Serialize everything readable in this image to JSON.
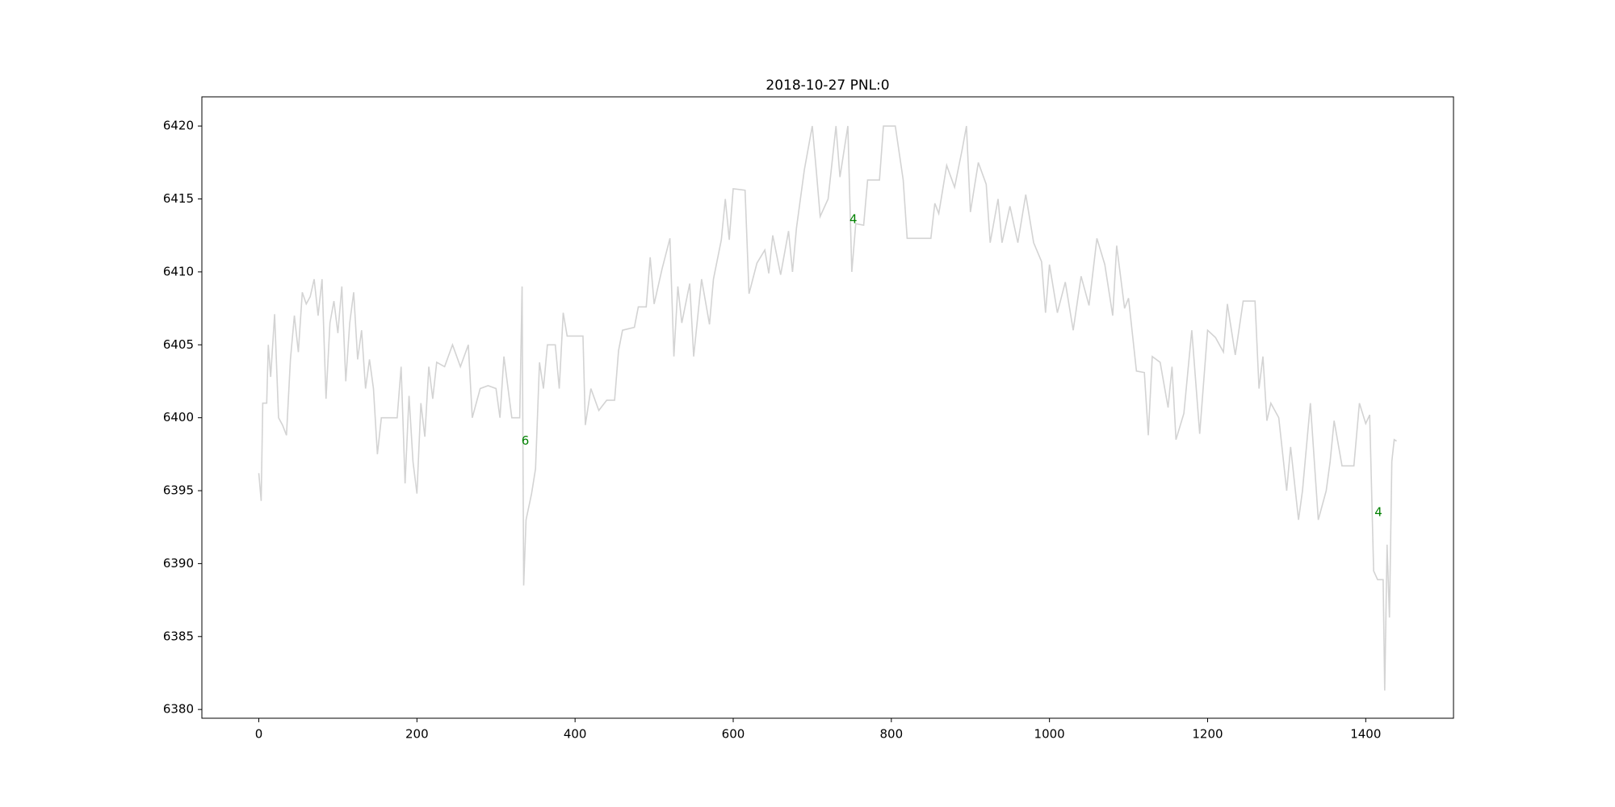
{
  "chart_data": {
    "type": "line",
    "title": "2018-10-27 PNL:0",
    "x": [
      0,
      3,
      5,
      10,
      12,
      15,
      20,
      25,
      30,
      35,
      40,
      45,
      50,
      55,
      60,
      65,
      70,
      75,
      80,
      85,
      90,
      95,
      100,
      105,
      110,
      115,
      120,
      125,
      130,
      135,
      140,
      145,
      150,
      155,
      165,
      175,
      180,
      185,
      190,
      195,
      200,
      205,
      210,
      215,
      220,
      225,
      235,
      245,
      255,
      265,
      270,
      280,
      290,
      300,
      305,
      310,
      320,
      330,
      333,
      335,
      338,
      345,
      350,
      355,
      360,
      365,
      375,
      380,
      385,
      390,
      400,
      410,
      413,
      420,
      430,
      440,
      450,
      455,
      460,
      475,
      480,
      490,
      495,
      500,
      510,
      520,
      525,
      530,
      535,
      545,
      550,
      560,
      570,
      575,
      585,
      590,
      595,
      600,
      615,
      620,
      630,
      640,
      645,
      650,
      660,
      670,
      675,
      680,
      690,
      700,
      705,
      710,
      720,
      730,
      735,
      745,
      750,
      755,
      765,
      770,
      785,
      790,
      805,
      815,
      820,
      850,
      855,
      860,
      870,
      880,
      890,
      895,
      900,
      910,
      920,
      925,
      935,
      940,
      950,
      960,
      970,
      980,
      990,
      995,
      1000,
      1010,
      1020,
      1030,
      1040,
      1050,
      1060,
      1070,
      1080,
      1085,
      1095,
      1100,
      1110,
      1120,
      1125,
      1130,
      1140,
      1150,
      1155,
      1160,
      1170,
      1180,
      1190,
      1200,
      1210,
      1220,
      1225,
      1235,
      1245,
      1260,
      1265,
      1270,
      1275,
      1280,
      1290,
      1300,
      1305,
      1315,
      1320,
      1330,
      1340,
      1350,
      1355,
      1360,
      1370,
      1385,
      1392,
      1400,
      1405,
      1410,
      1415,
      1422,
      1424,
      1427,
      1430,
      1433,
      1436,
      1439
    ],
    "values": [
      6396.2,
      6394.3,
      6401,
      6401,
      6405,
      6402.8,
      6407.1,
      6400,
      6399.5,
      6398.8,
      6404,
      6407,
      6404.5,
      6408.6,
      6407.8,
      6408.3,
      6409.5,
      6407,
      6409.5,
      6401.3,
      6406.5,
      6408,
      6405.8,
      6409,
      6402.5,
      6406.5,
      6408.6,
      6404,
      6406,
      6402,
      6404,
      6402,
      6397.5,
      6400,
      6400,
      6400,
      6403.5,
      6395.5,
      6401.5,
      6397,
      6394.8,
      6401,
      6398.7,
      6403.5,
      6401.3,
      6403.8,
      6403.5,
      6405,
      6403.5,
      6405,
      6400,
      6402,
      6402.2,
      6402,
      6400,
      6404.2,
      6400,
      6400,
      6409,
      6388.5,
      6393,
      6394.8,
      6396.5,
      6403.8,
      6402,
      6405,
      6405,
      6402,
      6407.2,
      6405.6,
      6405.6,
      6405.6,
      6399.5,
      6402,
      6400.5,
      6401.2,
      6401.2,
      6404.6,
      6406,
      6406.2,
      6407.6,
      6407.6,
      6411,
      6407.8,
      6410.2,
      6412.3,
      6404.2,
      6409,
      6406.5,
      6409.2,
      6404.2,
      6409.5,
      6406.4,
      6409.5,
      6412.2,
      6415,
      6412.2,
      6415.7,
      6415.6,
      6408.5,
      6410.6,
      6411.5,
      6409.9,
      6412.5,
      6409.8,
      6412.8,
      6410,
      6413,
      6417,
      6420,
      6417,
      6413.8,
      6415,
      6420,
      6416.5,
      6420,
      6410,
      6413.3,
      6413.2,
      6416.3,
      6416.3,
      6420,
      6420,
      6416.3,
      6412.3,
      6412.3,
      6414.7,
      6414,
      6417.3,
      6415.8,
      6418.5,
      6420,
      6414.1,
      6417.5,
      6416,
      6412,
      6415,
      6412,
      6414.5,
      6412,
      6415.3,
      6412,
      6410.7,
      6407.2,
      6410.5,
      6407.2,
      6409.3,
      6406,
      6409.7,
      6407.7,
      6412.3,
      6410.5,
      6407,
      6411.8,
      6407.5,
      6408.2,
      6403.2,
      6403.1,
      6398.8,
      6404.2,
      6403.8,
      6400.7,
      6403.5,
      6398.5,
      6400.3,
      6406,
      6398.9,
      6406,
      6405.5,
      6404.5,
      6407.8,
      6404.3,
      6408,
      6408,
      6402,
      6404.2,
      6399.8,
      6401,
      6400,
      6395,
      6398,
      6393,
      6395,
      6401,
      6393,
      6395,
      6397,
      6399.8,
      6396.7,
      6396.7,
      6401,
      6399.6,
      6400.2,
      6389.5,
      6388.9,
      6388.9,
      6381.3,
      6391.3,
      6386.3,
      6397,
      6398.5,
      6398.4
    ],
    "color": "#d3d3d3",
    "xlim": [
      -72,
      1511
    ],
    "ylim": [
      6379.4,
      6422.0
    ],
    "xticks": [
      0,
      200,
      400,
      600,
      800,
      1000,
      1200,
      1400
    ],
    "yticks": [
      6380,
      6385,
      6390,
      6395,
      6400,
      6405,
      6410,
      6415,
      6420
    ],
    "annotations": [
      {
        "text": "6",
        "x": 337,
        "y": 6398.4,
        "color": "#008000"
      },
      {
        "text": "4",
        "x": 752,
        "y": 6413.6,
        "color": "#008000"
      },
      {
        "text": "4",
        "x": 1416,
        "y": 6393.5,
        "color": "#008000"
      }
    ]
  }
}
